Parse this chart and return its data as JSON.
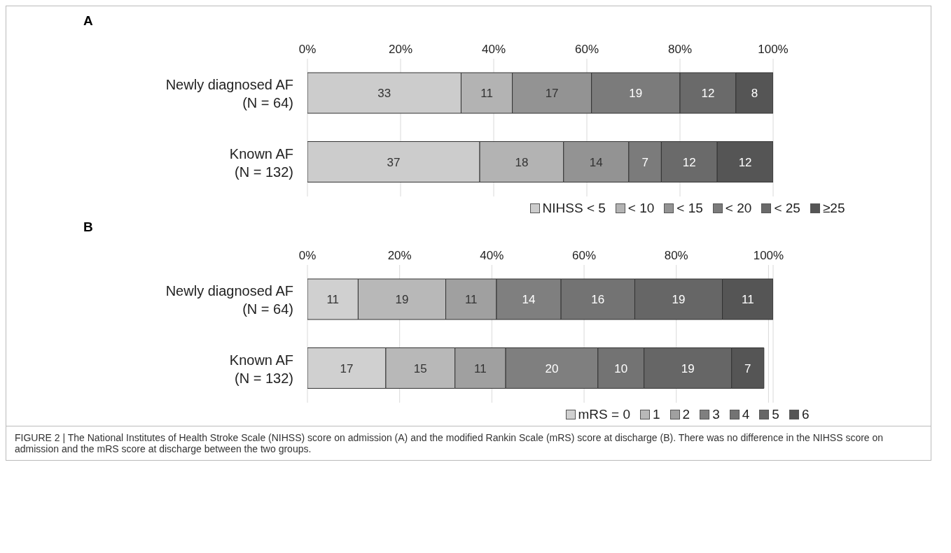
{
  "chart_data": [
    {
      "type": "bar",
      "title": "A",
      "orientation": "horizontal",
      "stacked": true,
      "categories": [
        "Newly diagnosed AF\n(N = 64)",
        "Known AF\n(N = 132)"
      ],
      "series": [
        {
          "name": "NIHSS < 5",
          "color": "#cccccc",
          "values": [
            33,
            37
          ]
        },
        {
          "name": "< 10",
          "color": "#b3b3b3",
          "values": [
            11,
            18
          ]
        },
        {
          "name": "< 15",
          "color": "#939393",
          "values": [
            17,
            14
          ]
        },
        {
          "name": "< 20",
          "color": "#7b7b7b",
          "values": [
            19,
            7
          ]
        },
        {
          "name": "< 25",
          "color": "#6a6a6a",
          "values": [
            12,
            12
          ]
        },
        {
          "name": "≥25",
          "color": "#555555",
          "values": [
            8,
            12
          ]
        }
      ],
      "xlim": [
        0,
        100
      ],
      "xticks": [
        {
          "value": 0,
          "label": "0%"
        },
        {
          "value": 20,
          "label": "20%"
        },
        {
          "value": 40,
          "label": "40%"
        },
        {
          "value": 60,
          "label": "60%"
        },
        {
          "value": 80,
          "label": "80%"
        },
        {
          "value": 100,
          "label": "100%"
        }
      ],
      "grid": "x",
      "legend": "bottom",
      "data_labels": true
    },
    {
      "type": "bar",
      "title": "B",
      "orientation": "horizontal",
      "stacked": true,
      "categories": [
        "Newly diagnosed AF\n(N = 64)",
        "Known AF\n(N = 132)"
      ],
      "series": [
        {
          "name": "mRS = 0",
          "color": "#d0d0d0",
          "values": [
            11,
            17
          ]
        },
        {
          "name": "1",
          "color": "#b8b8b8",
          "values": [
            19,
            15
          ]
        },
        {
          "name": "2",
          "color": "#a0a0a0",
          "values": [
            11,
            11
          ]
        },
        {
          "name": "3",
          "color": "#7f7f7f",
          "values": [
            14,
            20
          ]
        },
        {
          "name": "4",
          "color": "#737373",
          "values": [
            16,
            10
          ]
        },
        {
          "name": "5",
          "color": "#666666",
          "values": [
            19,
            19
          ]
        },
        {
          "name": "6",
          "color": "#555555",
          "values": [
            11,
            7
          ]
        }
      ],
      "xlim": [
        0,
        101
      ],
      "xticks": [
        {
          "value": 0,
          "label": "0%"
        },
        {
          "value": 20,
          "label": "20%"
        },
        {
          "value": 40,
          "label": "40%"
        },
        {
          "value": 60,
          "label": "60%"
        },
        {
          "value": 80,
          "label": "80%"
        },
        {
          "value": 100,
          "label": "100%"
        }
      ],
      "grid": "x",
      "legend": "bottom",
      "data_labels": true,
      "annotations": [
        "FIGURE 2 | The National Institutes of Health Stroke Scale (NIHSS) score on admission (A) and the modified Rankin Scale (mRS) score at discharge (B). There was no difference in the NIHSS score on admission and the mRS score at discharge between the two groups."
      ]
    }
  ]
}
